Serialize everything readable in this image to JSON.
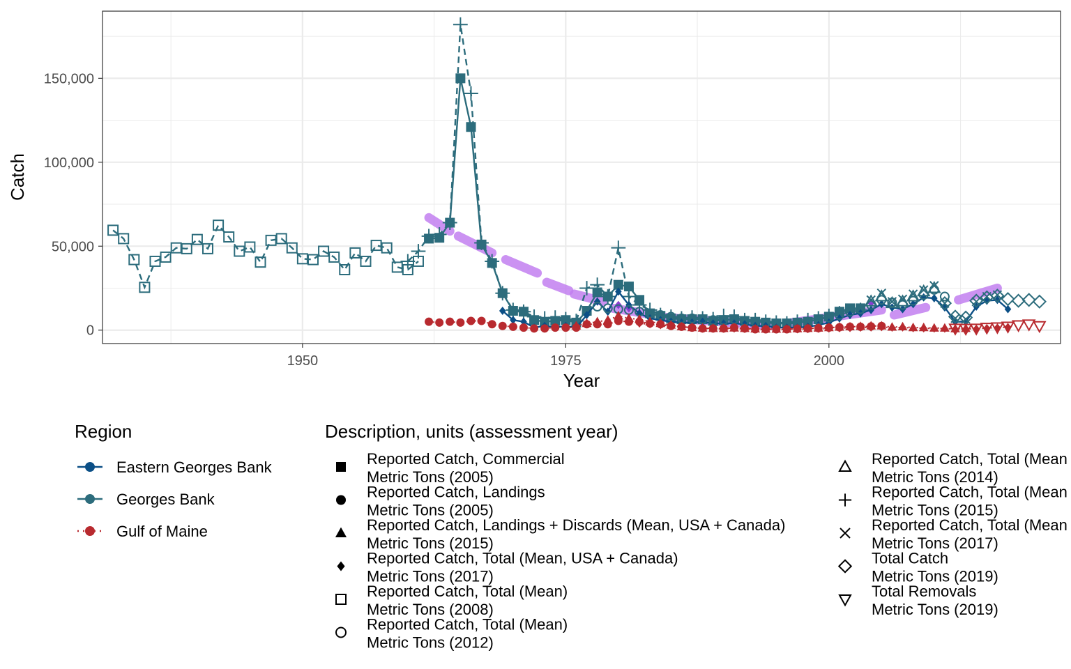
{
  "chart_data": {
    "type": "line",
    "xlabel": "Year",
    "ylabel": "Catch",
    "xlim": [
      1931,
      2022
    ],
    "ylim": [
      -8000,
      190000
    ],
    "x_ticks": [
      1950,
      1975,
      2000
    ],
    "x_tick_labels": [
      "1950",
      "1975",
      "2000"
    ],
    "y_ticks": [
      0,
      50000,
      100000,
      150000
    ],
    "y_tick_labels": [
      "0",
      "50,000",
      "100,000",
      "150,000"
    ],
    "grid": true,
    "legend_position": "bottom",
    "colors": {
      "Eastern Georges Bank": "#0b4f86",
      "Georges Bank": "#2c6c7c",
      "Gulf of Maine": "#b82a2f",
      "trend": "#c27ff0",
      "trend_dark": "#8a3fd1"
    },
    "region_legend": {
      "title": "Region",
      "entries": [
        "Eastern Georges Bank",
        "Georges Bank",
        "Gulf of Maine"
      ]
    },
    "description_legend": {
      "title": "Description, units (assessment year)",
      "entries": [
        {
          "line1": "Reported Catch, Commercial",
          "line2": "Metric Tons (2005)",
          "shape": "square-filled"
        },
        {
          "line1": "Reported Catch, Landings",
          "line2": "Metric Tons (2005)",
          "shape": "circle-filled"
        },
        {
          "line1": "Reported Catch, Landings + Discards (Mean, USA + Canada)",
          "line2": "Metric Tons (2015)",
          "shape": "triangle-filled"
        },
        {
          "line1": "Reported Catch, Total (Mean, USA + Canada)",
          "line2": "Metric Tons (2017)",
          "shape": "diamond-filled"
        },
        {
          "line1": "Reported Catch, Total (Mean)",
          "line2": "Metric Tons (2008)",
          "shape": "square-open"
        },
        {
          "line1": "Reported Catch, Total (Mean)",
          "line2": "Metric Tons (2012)",
          "shape": "circle-open"
        },
        {
          "line1": "Reported Catch, Total (Mean",
          "line2": "Metric Tons (2014)",
          "shape": "triangle-open"
        },
        {
          "line1": "Reported Catch, Total (Mean",
          "line2": "Metric Tons (2015)",
          "shape": "plus"
        },
        {
          "line1": "Reported Catch, Total (Mean",
          "line2": "Metric Tons (2017)",
          "shape": "cross"
        },
        {
          "line1": "Total Catch",
          "line2": "Metric Tons (2019)",
          "shape": "diamond-open"
        },
        {
          "line1": "Total Removals",
          "line2": "Metric Tons (2019)",
          "shape": "triangle-down-open"
        }
      ]
    },
    "series": [
      {
        "region": "Georges Bank",
        "shape": "square-open",
        "line": "dashed",
        "x": [
          1932,
          1933,
          1934,
          1935,
          1936,
          1937,
          1938,
          1939,
          1940,
          1941,
          1942,
          1943,
          1944,
          1945,
          1946,
          1947,
          1948,
          1949,
          1950,
          1951,
          1952,
          1953,
          1954,
          1955,
          1956,
          1957,
          1958,
          1959,
          1960,
          1961
        ],
        "y": [
          59500,
          54500,
          42000,
          25500,
          41000,
          43500,
          49000,
          48500,
          54000,
          48500,
          62500,
          55500,
          47000,
          49500,
          40500,
          53500,
          54500,
          49000,
          42500,
          42000,
          47000,
          43500,
          36000,
          46000,
          41000,
          50500,
          49000,
          37500,
          36000,
          41000
        ]
      },
      {
        "region": "Georges Bank",
        "shape": "plus",
        "line": "dashed",
        "x": [
          1960,
          1961,
          1962,
          1963,
          1964,
          1965,
          1966,
          1967,
          1968,
          1969,
          1970,
          1971,
          1972,
          1973,
          1974,
          1975,
          1976,
          1977,
          1978,
          1979,
          1980,
          1981,
          1982,
          1983,
          1984,
          1985,
          1986,
          1987,
          1988,
          1989,
          1990,
          1991,
          1992,
          1993,
          1994,
          1995,
          1996,
          1997,
          1998,
          1999,
          2000,
          2001,
          2002,
          2003
        ],
        "y": [
          41000,
          47000,
          56000,
          57000,
          64000,
          182000,
          141000,
          52000,
          41000,
          22000,
          12000,
          11000,
          8000,
          7000,
          7500,
          6500,
          5500,
          25000,
          27000,
          20000,
          49000,
          20000,
          15000,
          12000,
          9000,
          8000,
          7000,
          7500,
          7000,
          6500,
          8500,
          8000,
          6000,
          6000,
          5000,
          4500,
          4000,
          5000,
          6000,
          7000,
          8500,
          10000,
          11000,
          12000
        ]
      },
      {
        "region": "Georges Bank",
        "shape": "square-filled",
        "line": "solid",
        "x": [
          1962,
          1963,
          1964,
          1965,
          1966,
          1967,
          1968,
          1969,
          1970,
          1971,
          1972,
          1973,
          1974,
          1975,
          1976,
          1977,
          1978,
          1979,
          1980,
          1981,
          1982,
          1983,
          1984,
          1985,
          1986,
          1987,
          1988,
          1989,
          1990,
          1991,
          1992,
          1993,
          1994,
          1995,
          1996,
          1997,
          1998,
          1999,
          2000,
          2001,
          2002,
          2003
        ],
        "y": [
          54500,
          55000,
          64000,
          150000,
          121000,
          51000,
          40000,
          22000,
          11500,
          11000,
          6000,
          5000,
          5500,
          6000,
          4500,
          11500,
          22500,
          20000,
          27000,
          26000,
          18000,
          10000,
          8500,
          7000,
          6500,
          6500,
          6500,
          5500,
          6000,
          6500,
          5500,
          5000,
          4500,
          4000,
          4000,
          4500,
          5000,
          6500,
          8000,
          11000,
          13000,
          13000
        ]
      },
      {
        "region": "Eastern Georges Bank",
        "shape": "diamond-filled",
        "line": "solid",
        "x": [
          1969,
          1970,
          1971,
          1972,
          1973,
          1974,
          1975,
          1976,
          1977,
          1978,
          1979,
          1980,
          1981,
          1982,
          1983,
          1984,
          1985,
          1986,
          1987,
          1988,
          1989,
          1990,
          1991,
          1992,
          1993,
          1994,
          1995,
          1996,
          1997,
          1998,
          1999,
          2000,
          2001,
          2002,
          2003,
          2004,
          2005,
          2006,
          2007,
          2008,
          2009,
          2010,
          2011,
          2012,
          2013,
          2014,
          2015,
          2016,
          2017
        ],
        "y": [
          11500,
          6000,
          5000,
          1500,
          2500,
          1500,
          2500,
          1500,
          9000,
          17000,
          11000,
          23000,
          15000,
          10000,
          7000,
          6000,
          5000,
          4500,
          4500,
          5000,
          4000,
          4000,
          4000,
          3500,
          2500,
          2500,
          1500,
          1500,
          1500,
          2000,
          3000,
          4500,
          7000,
          9000,
          10000,
          12000,
          15500,
          13500,
          12500,
          15500,
          19500,
          19000,
          13500,
          5000,
          5000,
          14000,
          17500,
          18000,
          12500
        ]
      },
      {
        "region": "Georges Bank",
        "shape": "circle-open",
        "line": "none",
        "x": [
          1978,
          1979,
          1980,
          1981,
          1982,
          1983,
          1984,
          1985,
          1986,
          1987,
          1988,
          1989,
          1990,
          1991,
          1992,
          1993,
          1994,
          1995,
          1996,
          1997,
          1998,
          1999,
          2000,
          2001,
          2002,
          2003,
          2004,
          2005,
          2006,
          2007,
          2008,
          2009,
          2010,
          2011
        ],
        "y": [
          14000,
          13000,
          12500,
          12000,
          11000,
          10000,
          9000,
          8000,
          7000,
          7000,
          6500,
          6000,
          6000,
          6500,
          5500,
          5000,
          4500,
          4000,
          4000,
          4500,
          5000,
          6000,
          7500,
          9000,
          11000,
          12500,
          15000,
          18000,
          16500,
          15000,
          17500,
          21000,
          24000,
          20000
        ]
      },
      {
        "region": "Georges Bank",
        "shape": "cross",
        "line": "none",
        "x": [
          2004,
          2005,
          2006,
          2007,
          2008,
          2009,
          2010,
          2011,
          2012,
          2013,
          2014,
          2015,
          2016
        ],
        "y": [
          18000,
          22000,
          17000,
          18500,
          21500,
          24000,
          26500,
          16000,
          7000,
          6500,
          17000,
          20000,
          21000
        ]
      },
      {
        "region": "Georges Bank",
        "shape": "diamond-open",
        "line": "none",
        "x": [
          2011,
          2012,
          2013,
          2014,
          2015,
          2016,
          2017,
          2018,
          2019,
          2020
        ],
        "y": [
          16000,
          8000,
          7500,
          17500,
          19500,
          20500,
          18500,
          17500,
          18000,
          17000
        ]
      },
      {
        "region": "Georges Bank",
        "shape": "triangle-open",
        "line": "none",
        "x": [
          2004,
          2005,
          2006,
          2007,
          2008,
          2009,
          2010
        ],
        "y": [
          17000,
          20000,
          16000,
          17000,
          20000,
          23000,
          25000
        ]
      },
      {
        "region": "Gulf of Maine",
        "shape": "circle-filled",
        "line": "dotted",
        "x": [
          1962,
          1963,
          1964,
          1965,
          1966,
          1967,
          1968,
          1969,
          1970,
          1971,
          1972,
          1973,
          1974,
          1975,
          1976,
          1977,
          1978,
          1979,
          1980,
          1981,
          1982,
          1983,
          1984,
          1985,
          1986,
          1987,
          1988,
          1989,
          1990,
          1991,
          1992,
          1993,
          1994,
          1995,
          1996,
          1997,
          1998,
          1999,
          2000,
          2001,
          2002,
          2003,
          2004,
          2005
        ],
        "y": [
          5000,
          4500,
          5000,
          4500,
          5500,
          5500,
          3500,
          2500,
          2000,
          1500,
          1000,
          1000,
          1500,
          1500,
          1500,
          3500,
          3500,
          3500,
          5500,
          5000,
          5000,
          4000,
          3500,
          2500,
          2000,
          1500,
          1000,
          1000,
          1000,
          1500,
          1000,
          500,
          500,
          500,
          500,
          800,
          1000,
          1200,
          1500,
          1700,
          2000,
          2000,
          2200,
          2500
        ]
      },
      {
        "region": "Gulf of Maine",
        "shape": "triangle-filled",
        "line": "dotted",
        "x": [
          1976,
          1977,
          1978,
          1979,
          1980,
          1981,
          1982,
          1983,
          1984,
          1985,
          1986,
          1987,
          1988,
          1989,
          1990,
          1991,
          1992,
          1993,
          1994,
          1995,
          1996,
          1997,
          1998,
          1999,
          2000,
          2001,
          2002,
          2003,
          2004,
          2005,
          2006,
          2007,
          2008,
          2009,
          2010,
          2011,
          2012,
          2013
        ],
        "y": [
          2500,
          4000,
          5000,
          6000,
          8500,
          7000,
          6500,
          5000,
          4000,
          3000,
          2000,
          1500,
          1200,
          1000,
          1000,
          1300,
          1000,
          700,
          600,
          600,
          600,
          800,
          1000,
          1200,
          1500,
          1800,
          2000,
          2200,
          2500,
          2500,
          1800,
          2000,
          1500,
          1500,
          1200,
          1200,
          800,
          1000
        ]
      },
      {
        "region": "Gulf of Maine",
        "shape": "diamond-filled",
        "line": "dotted",
        "x": [
          1982,
          1983,
          1984,
          1985,
          1986,
          1987,
          1988,
          1989,
          1990,
          1991,
          1992,
          1993,
          1994,
          1995,
          1996,
          1997,
          1998,
          1999,
          2000,
          2001,
          2002,
          2003,
          2004,
          2005,
          2006,
          2007,
          2008,
          2009,
          2010,
          2011,
          2012,
          2013,
          2014,
          2015,
          2016,
          2017
        ],
        "y": [
          4000,
          3500,
          3000,
          2500,
          2000,
          1500,
          1000,
          800,
          800,
          1000,
          700,
          500,
          400,
          400,
          400,
          500,
          600,
          800,
          1000,
          1200,
          1300,
          1500,
          1600,
          1800,
          1500,
          1600,
          1200,
          1100,
          1000,
          900,
          700,
          700,
          800,
          1200,
          1500,
          1800
        ]
      },
      {
        "region": "Gulf of Maine",
        "shape": "triangle-down-open",
        "line": "none",
        "x": [
          2012,
          2013,
          2014,
          2015,
          2016,
          2017,
          2018,
          2019,
          2020
        ],
        "y": [
          1000,
          900,
          1000,
          1500,
          1800,
          2200,
          3000,
          3500,
          2500
        ]
      }
    ],
    "trend_segments": [
      {
        "x": [
          1962.0,
          1964.0
        ],
        "y": [
          67000,
          59000
        ]
      },
      {
        "x": [
          1964.8,
          1968.0
        ],
        "y": [
          56000,
          46000
        ]
      },
      {
        "x": [
          1969.3,
          1972.3
        ],
        "y": [
          42000,
          34000
        ]
      },
      {
        "x": [
          1973.2,
          1975.3
        ],
        "y": [
          28500,
          23500
        ]
      },
      {
        "x": [
          1975.8,
          1978.6
        ],
        "y": [
          21500,
          17000
        ]
      },
      {
        "x": [
          1979.5,
          1983.0
        ],
        "y": [
          13000,
          9500
        ]
      },
      {
        "x": [
          1984.5,
          1995.0
        ],
        "y": [
          7500,
          2500
        ]
      },
      {
        "x": [
          1996.0,
          2005.0
        ],
        "y": [
          4000,
          12000
        ]
      },
      {
        "x": [
          2006.2,
          2009.2
        ],
        "y": [
          9000,
          13500
        ]
      },
      {
        "x": [
          2012.3,
          2016.0
        ],
        "y": [
          18000,
          25000
        ]
      }
    ],
    "trend_purple_points": {
      "x": [
        1980,
        1981,
        1982,
        1983,
        1984,
        1985,
        1986,
        1987,
        1988,
        1989,
        1990,
        1991,
        1992,
        1993,
        1994,
        1995,
        1996,
        1997,
        1998,
        1999,
        2000,
        2001,
        2002,
        2003,
        2004
      ],
      "y": [
        15000,
        13000,
        10000,
        8000,
        7000,
        6000,
        5000,
        5000,
        4500,
        4500,
        5000,
        5000,
        4000,
        3500,
        3000,
        3000,
        3500,
        4000,
        5000,
        6000,
        7500,
        9000,
        11000,
        13000,
        16000
      ]
    }
  }
}
